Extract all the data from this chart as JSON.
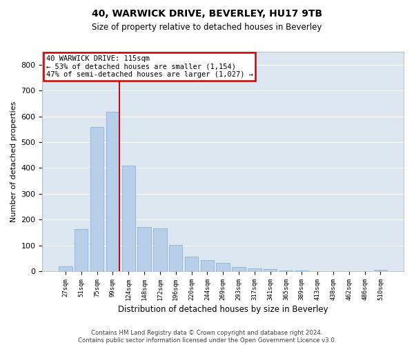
{
  "title_line1": "40, WARWICK DRIVE, BEVERLEY, HU17 9TB",
  "title_line2": "Size of property relative to detached houses in Beverley",
  "xlabel": "Distribution of detached houses by size in Beverley",
  "ylabel": "Number of detached properties",
  "footer_line1": "Contains HM Land Registry data © Crown copyright and database right 2024.",
  "footer_line2": "Contains public sector information licensed under the Open Government Licence v3.0.",
  "categories": [
    "27sqm",
    "51sqm",
    "75sqm",
    "99sqm",
    "124sqm",
    "148sqm",
    "172sqm",
    "196sqm",
    "220sqm",
    "244sqm",
    "269sqm",
    "293sqm",
    "317sqm",
    "341sqm",
    "365sqm",
    "389sqm",
    "413sqm",
    "438sqm",
    "462sqm",
    "486sqm",
    "510sqm"
  ],
  "bar_heights": [
    20,
    163,
    558,
    617,
    410,
    170,
    165,
    103,
    57,
    43,
    32,
    15,
    10,
    8,
    3,
    2,
    1,
    1,
    0,
    0,
    6
  ],
  "bar_color": "#b8cfea",
  "bar_edge_color": "#8ab3d5",
  "background_color": "#dce6f0",
  "grid_color": "#ffffff",
  "annotation_box_edge_color": "#cc0000",
  "property_line_color": "#cc0000",
  "property_bin_index": 3,
  "annotation_text_line1": "40 WARWICK DRIVE: 115sqm",
  "annotation_text_line2": "← 53% of detached houses are smaller (1,154)",
  "annotation_text_line3": "47% of semi-detached houses are larger (1,027) →",
  "ylim": [
    0,
    850
  ],
  "yticks": [
    0,
    100,
    200,
    300,
    400,
    500,
    600,
    700,
    800
  ]
}
